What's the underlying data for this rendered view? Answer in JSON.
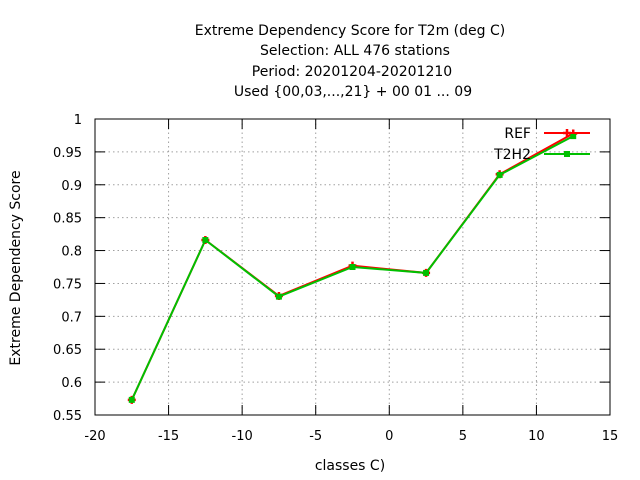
{
  "chart_data": {
    "type": "line",
    "title_lines": [
      "Extreme Dependency Score  for T2m (deg C)",
      "Selection: ALL    476 stations",
      "Period: 20201204-20201210",
      "Used {00,03,...,21} + 00 01 ... 09"
    ],
    "xlabel": "classes C)",
    "ylabel": "Extreme Dependency Score",
    "xlim": [
      -20,
      15
    ],
    "ylim": [
      0.55,
      1
    ],
    "xticks": [
      -20,
      -15,
      -10,
      -5,
      0,
      5,
      10,
      15
    ],
    "yticks": [
      0.55,
      0.6,
      0.65,
      0.7,
      0.75,
      0.8,
      0.85,
      0.9,
      0.95,
      1
    ],
    "ytick_labels": [
      "0.55",
      "0.6",
      "0.65",
      "0.7",
      "0.75",
      "0.8",
      "0.85",
      "0.9",
      "0.95",
      "1"
    ],
    "grid": true,
    "legend_position": "top-right",
    "x": [
      -17.5,
      -12.5,
      -7.5,
      -2.5,
      2.5,
      7.5,
      12.5
    ],
    "series": [
      {
        "name": "REF",
        "color": "#ff0000",
        "marker": "plus",
        "values": [
          0.573,
          0.816,
          0.731,
          0.777,
          0.766,
          0.916,
          0.978
        ]
      },
      {
        "name": "T2H2",
        "color": "#00c000",
        "marker": "square",
        "values": [
          0.573,
          0.816,
          0.73,
          0.775,
          0.766,
          0.915,
          0.974
        ]
      }
    ]
  }
}
